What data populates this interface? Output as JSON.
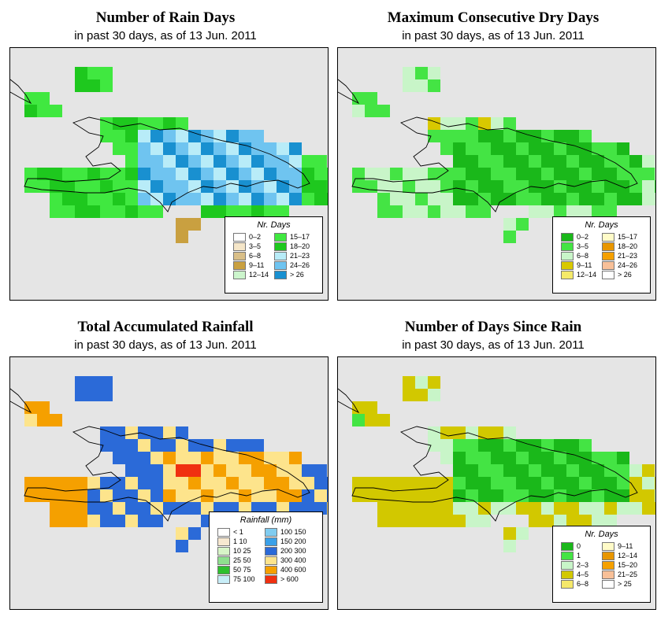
{
  "panels": [
    {
      "title": "Number of Rain Days",
      "subtitle": "in past 30 days, as of  13 Jun. 2011",
      "legend": {
        "title": "Nr. Days",
        "items": [
          {
            "label": "0–2",
            "color": "#ffffff"
          },
          {
            "label": "3–5",
            "color": "#f5e6c8"
          },
          {
            "label": "6–8",
            "color": "#d9bf88"
          },
          {
            "label": "9–11",
            "color": "#c9a040"
          },
          {
            "label": "12–14",
            "color": "#ccf5cc"
          },
          {
            "label": "15–17",
            "color": "#40e840"
          },
          {
            "label": "18–20",
            "color": "#1ec81e"
          },
          {
            "label": "21–23",
            "color": "#b8ecf8"
          },
          {
            "label": "24–26",
            "color": "#6fc4f0"
          },
          {
            "label": "> 26",
            "color": "#1990d0"
          }
        ]
      }
    },
    {
      "title": "Maximum Consecutive Dry Days",
      "subtitle": "in past 30 days, as of  13 Jun. 2011",
      "legend": {
        "title": "Nr. Days",
        "items": [
          {
            "label": "0–2",
            "color": "#1ab81a"
          },
          {
            "label": "3–5",
            "color": "#44e444"
          },
          {
            "label": "6–8",
            "color": "#c8f5c8"
          },
          {
            "label": "9–11",
            "color": "#d8c800"
          },
          {
            "label": "12–14",
            "color": "#f5ea6a"
          },
          {
            "label": "15–17",
            "color": "#fffbc8"
          },
          {
            "label": "18–20",
            "color": "#e89600"
          },
          {
            "label": "21–23",
            "color": "#f5a000"
          },
          {
            "label": "24–26",
            "color": "#f8c098"
          },
          {
            "label": "> 26",
            "color": "#ffffff"
          }
        ]
      }
    },
    {
      "title": "Total Accumulated Rainfall",
      "subtitle": "in past 30 days, as of  13 Jun. 2011",
      "legend": {
        "title": "Rainfall (mm)",
        "items": [
          {
            "label": "< 1",
            "color": "#ffffff"
          },
          {
            "label": "1    10",
            "color": "#f7e8d0"
          },
          {
            "label": "10    25",
            "color": "#d8f5c8"
          },
          {
            "label": "25    50",
            "color": "#8ee08e"
          },
          {
            "label": "50    75",
            "color": "#2ec02e"
          },
          {
            "label": "75   100",
            "color": "#c8eef8"
          },
          {
            "label": "100   150",
            "color": "#80ccf0"
          },
          {
            "label": "150   200",
            "color": "#3aa0e8"
          },
          {
            "label": "200   300",
            "color": "#2b6ad8"
          },
          {
            "label": "300   400",
            "color": "#fde48c"
          },
          {
            "label": "400   600",
            "color": "#f5a000"
          },
          {
            "label": "> 600",
            "color": "#f03010"
          }
        ]
      }
    },
    {
      "title": "Number of Days Since Rain",
      "subtitle": "in past 30 days, as of  13 Jun. 2011",
      "legend": {
        "title": "Nr. Days",
        "items": [
          {
            "label": "0",
            "color": "#1ab81a"
          },
          {
            "label": "1",
            "color": "#44e444"
          },
          {
            "label": "2–3",
            "color": "#c8f5c8"
          },
          {
            "label": "4–5",
            "color": "#d2c800"
          },
          {
            "label": "6–8",
            "color": "#f5e86a"
          },
          {
            "label": "9–11",
            "color": "#fffbc8"
          },
          {
            "label": "12–14",
            "color": "#e89600"
          },
          {
            "label": "15–20",
            "color": "#f5a000"
          },
          {
            "label": "21–25",
            "color": "#f8c098"
          },
          {
            "label": "> 25",
            "color": "#ffffff"
          }
        ]
      }
    }
  ],
  "grid_maps": {
    "rows_top": 0,
    "rain_days": [
      "................................................",
      "..........GGG...........................",
      "..........GGG...........................",
      "....GG..................................",
      "..GGGG..................................",
      "....GG...........GGGG.BB................",
      "..............GGGGGGGGGGGG..............",
      "..............GGGLLLMMLLLLBB............",
      "..............GGGLLMMLLLMMLLB...........",
      "..GGGGGGGGGGGGGLGLLLLMLLLLLLLMMBB........",
      "..GGGGGGGGGGGGGLLLLLLLLLLMMMMBB.........",
      "..GGGGGGGGGGGGGGLGLLBLLLGGGGGG..........",
      "....GGGGGGGGGG.....LL...................",
      ".....................TT.................",
      "....................TT..................."
    ]
  }
}
